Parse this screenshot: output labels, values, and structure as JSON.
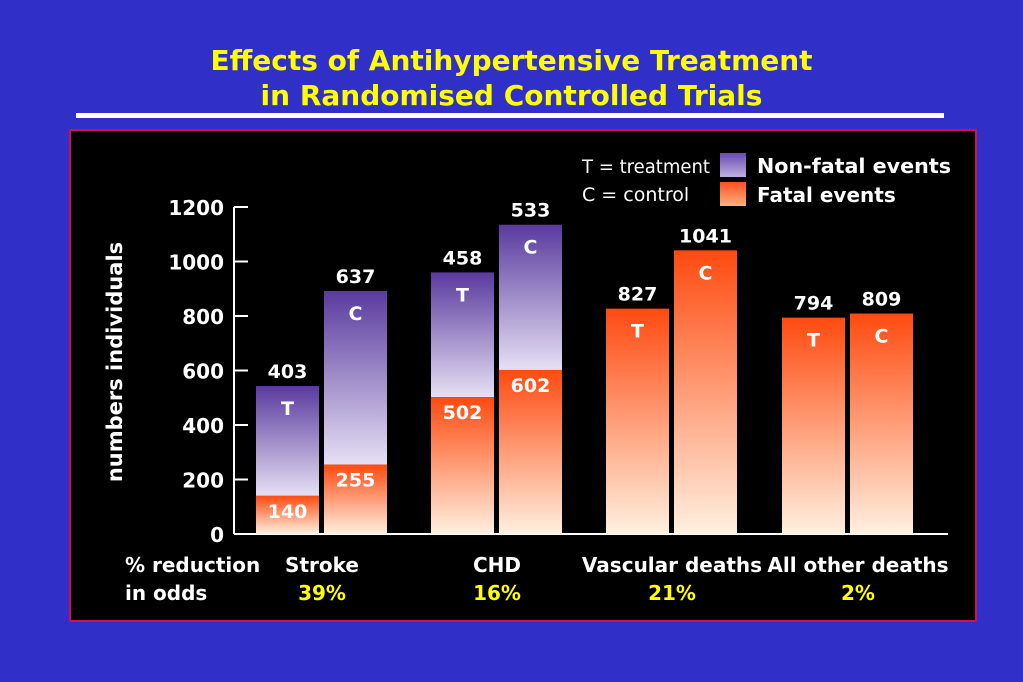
{
  "title_lines": [
    "Effects of Antihypertensive Treatment",
    "in Randomised Controlled Trials"
  ],
  "chart_data": {
    "type": "bar",
    "ylabel": "numbers individuals",
    "ylim": [
      0,
      1200
    ],
    "yticks": [
      "1200",
      "1000",
      "800",
      "600",
      "400",
      "200",
      "0"
    ],
    "legend": {
      "key_t": "T = treatment",
      "key_c": "C = control",
      "nonfatal": "Non-fatal events",
      "fatal": "Fatal events"
    },
    "series": [
      {
        "name": "Fatal events",
        "color": "#ff5020"
      },
      {
        "name": "Non-fatal events",
        "color": "#6040a0"
      }
    ],
    "groups": [
      {
        "name": "Stroke",
        "reduction": "39%",
        "bars": [
          {
            "code": "T",
            "fatal": 140,
            "nonfatal": 403
          },
          {
            "code": "C",
            "fatal": 255,
            "nonfatal": 637
          }
        ]
      },
      {
        "name": "CHD",
        "reduction": "16%",
        "bars": [
          {
            "code": "T",
            "fatal": 502,
            "nonfatal": 458
          },
          {
            "code": "C",
            "fatal": 602,
            "nonfatal": 533
          }
        ]
      },
      {
        "name": "Vascular deaths",
        "reduction": "21%",
        "bars": [
          {
            "code": "T",
            "fatal": 827
          },
          {
            "code": "C",
            "fatal": 1041
          }
        ]
      },
      {
        "name": "All other deaths",
        "reduction": "2%",
        "bars": [
          {
            "code": "T",
            "fatal": 794
          },
          {
            "code": "C",
            "fatal": 809
          }
        ]
      }
    ],
    "reduction_label": [
      "% reduction",
      "in odds"
    ]
  }
}
